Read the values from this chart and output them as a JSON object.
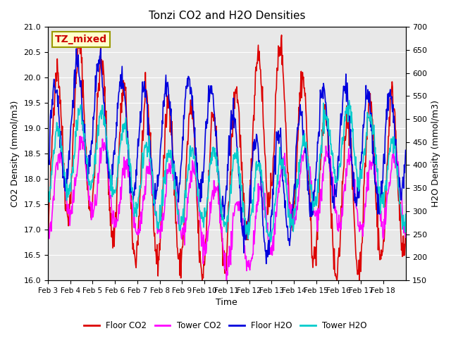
{
  "title": "Tonzi CO2 and H2O Densities",
  "xlabel": "Time",
  "ylabel_left": "CO2 Density (mmol/m3)",
  "ylabel_right": "H2O Density (mmol/m3)",
  "ylim_left": [
    16.0,
    21.0
  ],
  "ylim_right": [
    150,
    700
  ],
  "yticks_left": [
    16.0,
    16.5,
    17.0,
    17.5,
    18.0,
    18.5,
    19.0,
    19.5,
    20.0,
    20.5,
    21.0
  ],
  "yticks_right": [
    150,
    200,
    250,
    300,
    350,
    400,
    450,
    500,
    550,
    600,
    650,
    700
  ],
  "xtick_labels": [
    "Feb 3",
    "Feb 4",
    "Feb 5",
    "Feb 6",
    "Feb 7",
    "Feb 8",
    "Feb 9",
    "Feb 10",
    "Feb 11",
    "Feb 12",
    "Feb 13",
    "Feb 14",
    "Feb 15",
    "Feb 16",
    "Feb 17",
    "Feb 18"
  ],
  "n_days": 16,
  "annotation_text": "TZ_mixed",
  "annotation_color": "#cc0000",
  "annotation_bg": "#ffffcc",
  "line_floor_co2_color": "#dd0000",
  "line_tower_co2_color": "#ff00ff",
  "line_floor_h2o_color": "#0000dd",
  "line_tower_h2o_color": "#00cccc",
  "legend_labels": [
    "Floor CO2",
    "Tower CO2",
    "Floor H2O",
    "Tower H2O"
  ],
  "bg_color": "#e8e8e8",
  "fig_bg_color": "#ffffff",
  "grid_color": "#ffffff",
  "linewidth": 1.2
}
